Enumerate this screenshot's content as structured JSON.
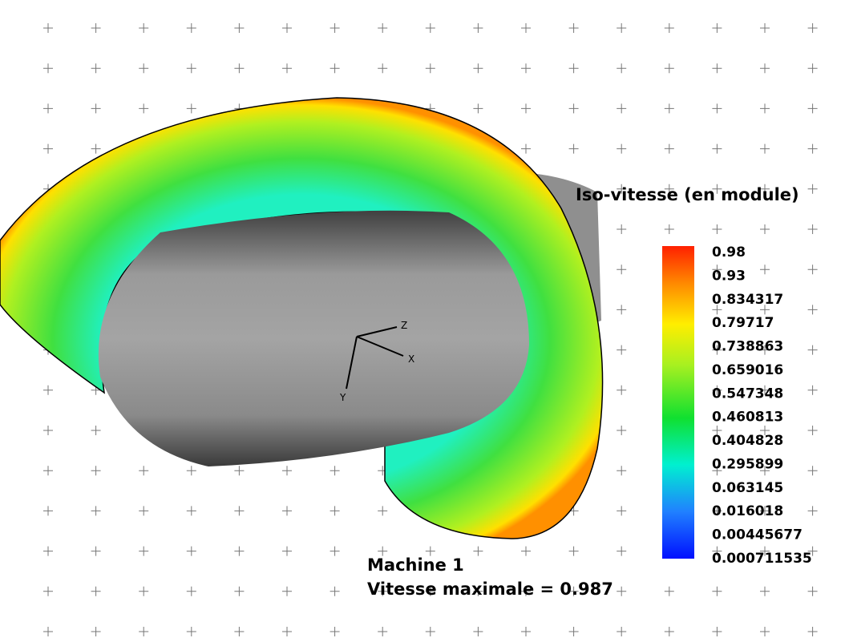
{
  "legend": {
    "title": "Iso-vitesse (en module)",
    "labels": [
      "0.98",
      "0.93",
      "0.834317",
      "0.79717",
      "0.738863",
      "0.659016",
      "0.547348",
      "0.460813",
      "0.404828",
      "0.295899",
      "0.063145",
      "0.016018",
      "0.00445677",
      "0.000711535"
    ]
  },
  "annotation": {
    "machine": "Machine 1",
    "max_speed": "Vitesse maximale = 0.987"
  },
  "axes": {
    "x": "X",
    "y": "Y",
    "z": "Z"
  }
}
